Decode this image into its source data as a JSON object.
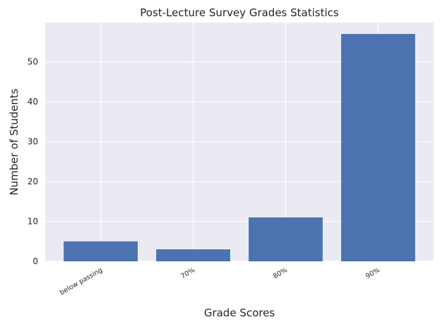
{
  "chart_data": {
    "type": "bar",
    "title": "Post-Lecture Survey Grades Statistics",
    "xlabel": "Grade Scores",
    "ylabel": "Number of Students",
    "categories": [
      "below passing",
      "70%",
      "80%",
      "90%"
    ],
    "values": [
      5,
      3,
      11,
      57
    ],
    "ylim": [
      0,
      59.85
    ],
    "yticks": [
      0,
      10,
      20,
      30,
      40,
      50
    ],
    "grid": true,
    "colors": {
      "bar": "#4c72b0",
      "plot_background": "#eaeaf2",
      "grid": "#ffffff",
      "text": "#262626"
    }
  }
}
